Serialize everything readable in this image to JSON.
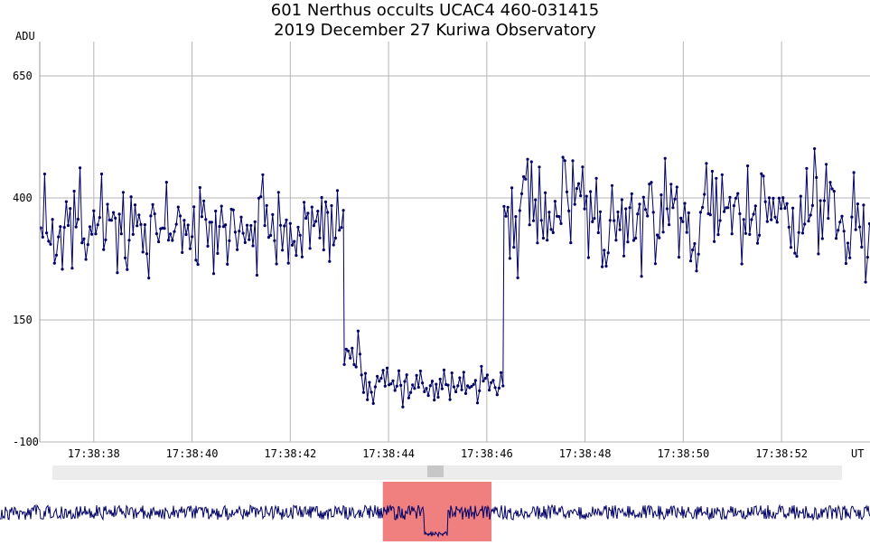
{
  "title_line1": "601 Nerthus occults UCAC4 460-031415",
  "title_line2": "2019 December 27  Kuriwa Observatory",
  "chart_data": {
    "type": "line",
    "title": "601 Nerthus occults UCAC4 460-031415",
    "subtitle": "2019 December 27  Kuriwa Observatory",
    "ylabel": "ADU",
    "xlabel": "UT",
    "ylim": [
      -100,
      700
    ],
    "y_ticks": [
      650,
      400,
      150,
      -100
    ],
    "x_range_seconds": [
      36.9,
      53.8
    ],
    "x_ticks": [
      "17:38:38",
      "17:38:40",
      "17:38:42",
      "17:38:44",
      "17:38:46",
      "17:38:48",
      "17:38:50",
      "17:38:52"
    ],
    "x_tick_seconds": [
      38,
      40,
      42,
      44,
      46,
      48,
      50,
      52
    ],
    "grid": true,
    "line_color": "#000066",
    "segments": [
      {
        "t_start": 36.92,
        "t_end": 43.1,
        "level": 340,
        "scatter": 65
      },
      {
        "t_start": 43.1,
        "t_end": 43.45,
        "level": 90,
        "scatter": 40
      },
      {
        "t_start": 43.45,
        "t_end": 46.35,
        "level": 20,
        "scatter": 28
      },
      {
        "t_start": 46.35,
        "t_end": 53.8,
        "level": 360,
        "scatter": 80
      }
    ],
    "overview": {
      "highlight_color": "#f08080",
      "highlight_range": [
        0.44,
        0.565
      ]
    }
  }
}
